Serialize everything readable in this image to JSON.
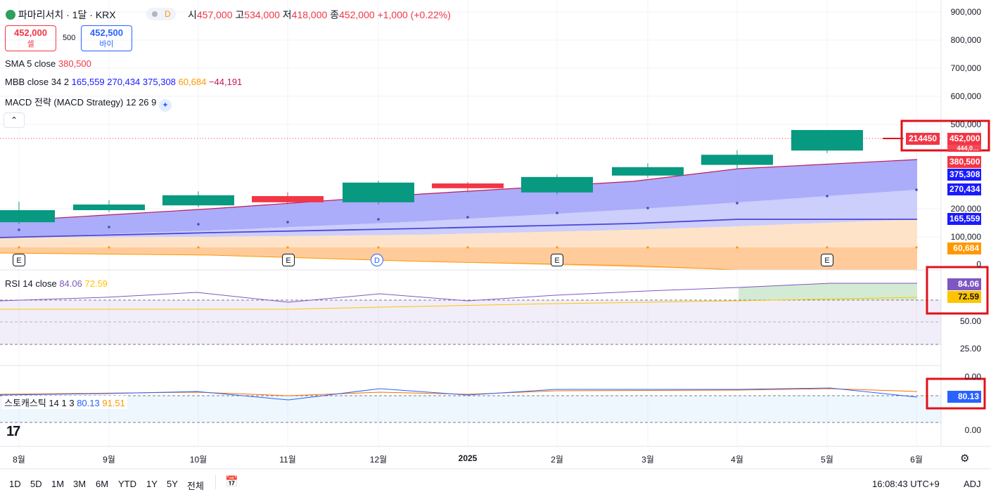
{
  "header": {
    "symbol_title": "파마리서치 · 1달 · KRX",
    "d_badge": "D",
    "open_label": "시",
    "open": "457,000",
    "high_label": "고",
    "high": "534,000",
    "low_label": "저",
    "low": "418,000",
    "close_label": "종",
    "close": "452,000",
    "change": "+1,000 (+0.22%)"
  },
  "trade": {
    "sell_price": "452,000",
    "sell_label": "셀",
    "spread": "500",
    "buy_price": "452,500",
    "buy_label": "바이"
  },
  "indicators": {
    "sma": {
      "name": "SMA 5 close",
      "value": "380,500"
    },
    "mbb": {
      "name": "MBB close 34 2",
      "v1": "165,559",
      "v2": "270,434",
      "v3": "375,308",
      "v4": "60,684",
      "v5": "−44,191"
    },
    "macd": {
      "name": "MACD 전략 (MACD Strategy) 12 26 9"
    },
    "rsi": {
      "name": "RSI 14 close",
      "v1": "84.06",
      "v2": "72.59"
    },
    "stoch": {
      "name": "스토캐스틱 14 1 3",
      "v1": "80.13",
      "v2": "91.51"
    }
  },
  "price_axis": [
    "900,000",
    "800,000",
    "700,000",
    "600,000",
    "500,000",
    "200,000",
    "100,000",
    "0"
  ],
  "rsi_axis": [
    "50.00",
    "25.00",
    "0.00"
  ],
  "stoch_axis": [
    "0.00"
  ],
  "price_tags": {
    "overlay": "214450",
    "last": "452,000",
    "hidden": "444,0…",
    "sma": "380,500",
    "bb_upper": "375,308",
    "bb_mid": "270,434",
    "bb_lower": "165,559",
    "bb_extra": "60,684",
    "rsi1": "84.06",
    "rsi2": "72.59",
    "stoch1": "80.13"
  },
  "x_axis": [
    "8월",
    "9월",
    "10월",
    "11월",
    "12월",
    "2025",
    "2월",
    "3월",
    "4월",
    "5월",
    "6월"
  ],
  "earnings_badges": [
    "E",
    "E",
    "D",
    "E",
    "E"
  ],
  "timeframes": [
    "1D",
    "5D",
    "1M",
    "3M",
    "6M",
    "YTD",
    "1Y",
    "5Y",
    "전체"
  ],
  "footer": {
    "clock": "16:08:43 UTC+9",
    "adj": "ADJ"
  },
  "colors": {
    "up": "#089981",
    "down": "#f23645",
    "bb_fill": "#7b7ff7",
    "bb_lower_fill": "#c7c9fb",
    "orange_fill": "#ffd9b3",
    "rsi_line": "#7e57c2",
    "rsi_ma": "#ffc400",
    "stoch_k": "#2962ff",
    "stoch_d": "#ff6d00",
    "highlight": "#e0101a"
  },
  "chart_data": {
    "type": "candlestick",
    "categories": [
      "8월",
      "9월",
      "10월",
      "11월",
      "12월",
      "2025",
      "2월",
      "3월",
      "4월",
      "5월"
    ],
    "candles": [
      {
        "open": 152000,
        "close": 195000,
        "high": 225000,
        "low": 145000
      },
      {
        "open": 195000,
        "close": 215000,
        "high": 230000,
        "low": 188000
      },
      {
        "open": 212000,
        "close": 248000,
        "high": 262000,
        "low": 205000
      },
      {
        "open": 245000,
        "close": 223000,
        "high": 258000,
        "low": 215000
      },
      {
        "open": 223000,
        "close": 293000,
        "high": 300000,
        "low": 215000
      },
      {
        "open": 290000,
        "close": 273000,
        "high": 295000,
        "low": 258000
      },
      {
        "open": 258000,
        "close": 313000,
        "high": 322000,
        "low": 250000
      },
      {
        "open": 318000,
        "close": 348000,
        "high": 362000,
        "low": 310000
      },
      {
        "open": 356000,
        "close": 392000,
        "high": 408000,
        "low": 340000
      },
      {
        "open": 407000,
        "close": 480000,
        "high": 480000,
        "low": 398000
      }
    ],
    "ylim": [
      0,
      900000
    ]
  }
}
